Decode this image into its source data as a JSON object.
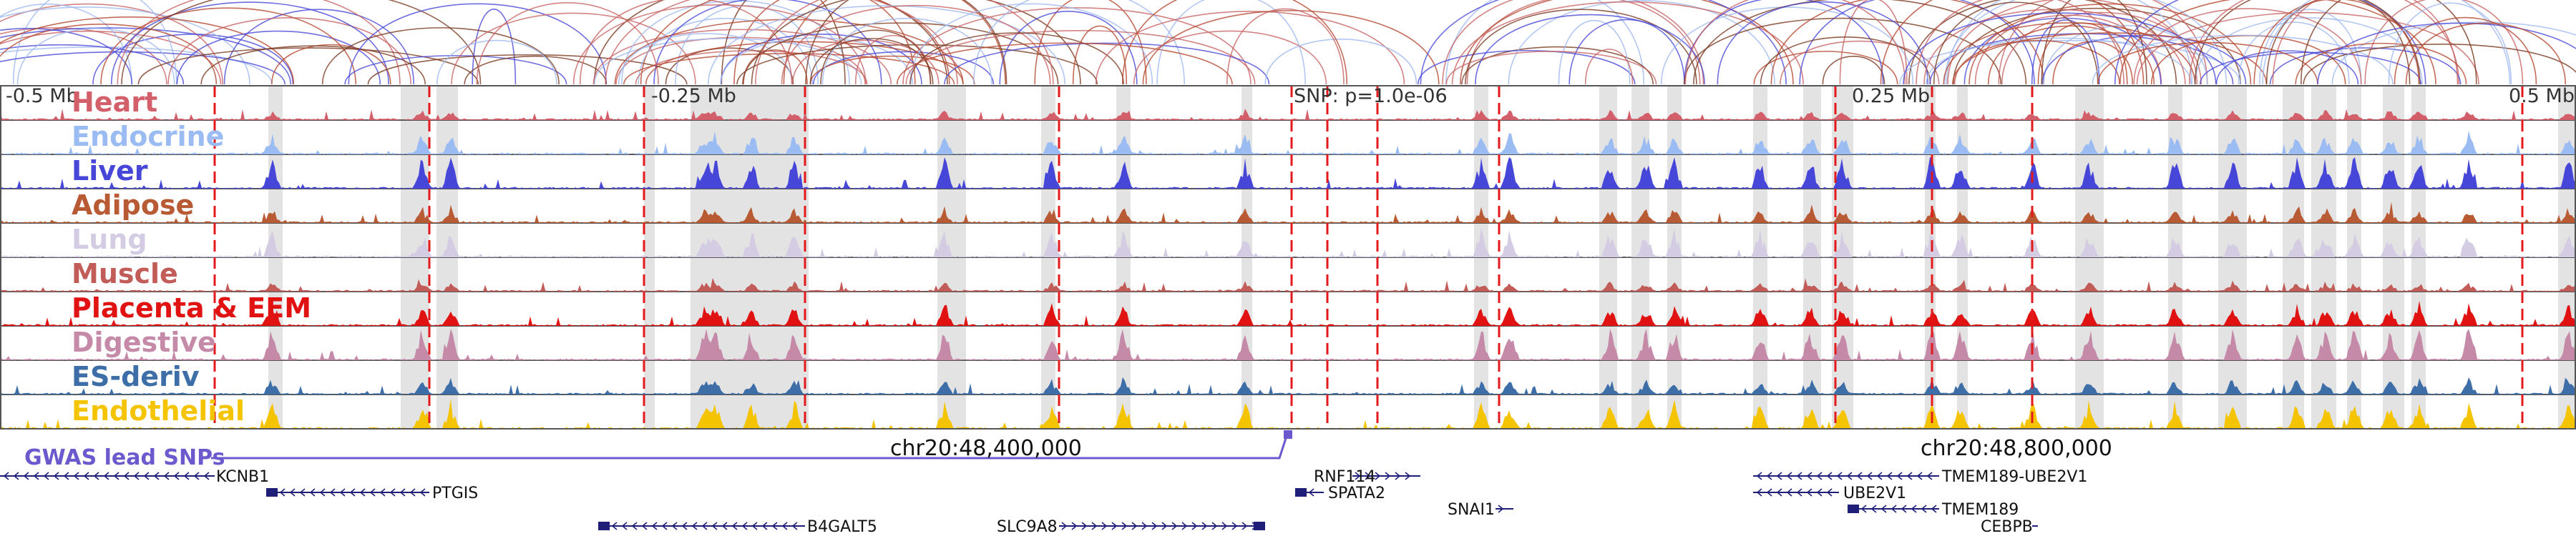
{
  "locus": {
    "left_coord": "chr20:48,400,000",
    "right_coord": "chr20:48,800,000",
    "mb_ticks": [
      "-0.5 Mb",
      "-0.25 Mb",
      "0.25 Mb",
      "0.5 Mb"
    ],
    "snp_label": "SNP: p=1.0e-06",
    "gwas_label": "GWAS lead SNPs"
  },
  "tracks": [
    {
      "name": "Heart",
      "color": "#d35f6b"
    },
    {
      "name": "Endocrine",
      "color": "#9bbcf2"
    },
    {
      "name": "Liver",
      "color": "#4646d8"
    },
    {
      "name": "Adipose",
      "color": "#b85a34"
    },
    {
      "name": "Lung",
      "color": "#d4cce3"
    },
    {
      "name": "Muscle",
      "color": "#c25c58"
    },
    {
      "name": "Placenta & EEM",
      "color": "#e01212"
    },
    {
      "name": "Digestive",
      "color": "#c58aa8"
    },
    {
      "name": "ES-deriv",
      "color": "#3d6ea7"
    },
    {
      "name": "Endothelial",
      "color": "#f5c400"
    }
  ],
  "genes": [
    {
      "name": "KCNB1"
    },
    {
      "name": "PTGIS"
    },
    {
      "name": "B4GALT5"
    },
    {
      "name": "SLC9A8"
    },
    {
      "name": "RNF114"
    },
    {
      "name": "SPATA2"
    },
    {
      "name": "SNAI1"
    },
    {
      "name": "TMEM189-UBE2V1"
    },
    {
      "name": "UBE2V1"
    },
    {
      "name": "TMEM189"
    },
    {
      "name": "CEBPB"
    }
  ],
  "colors": {
    "gwas": "#6a5acd",
    "gene": "#1f1f7a",
    "snp_line": "#e31a1c",
    "highlight": "#d9d9d9"
  }
}
